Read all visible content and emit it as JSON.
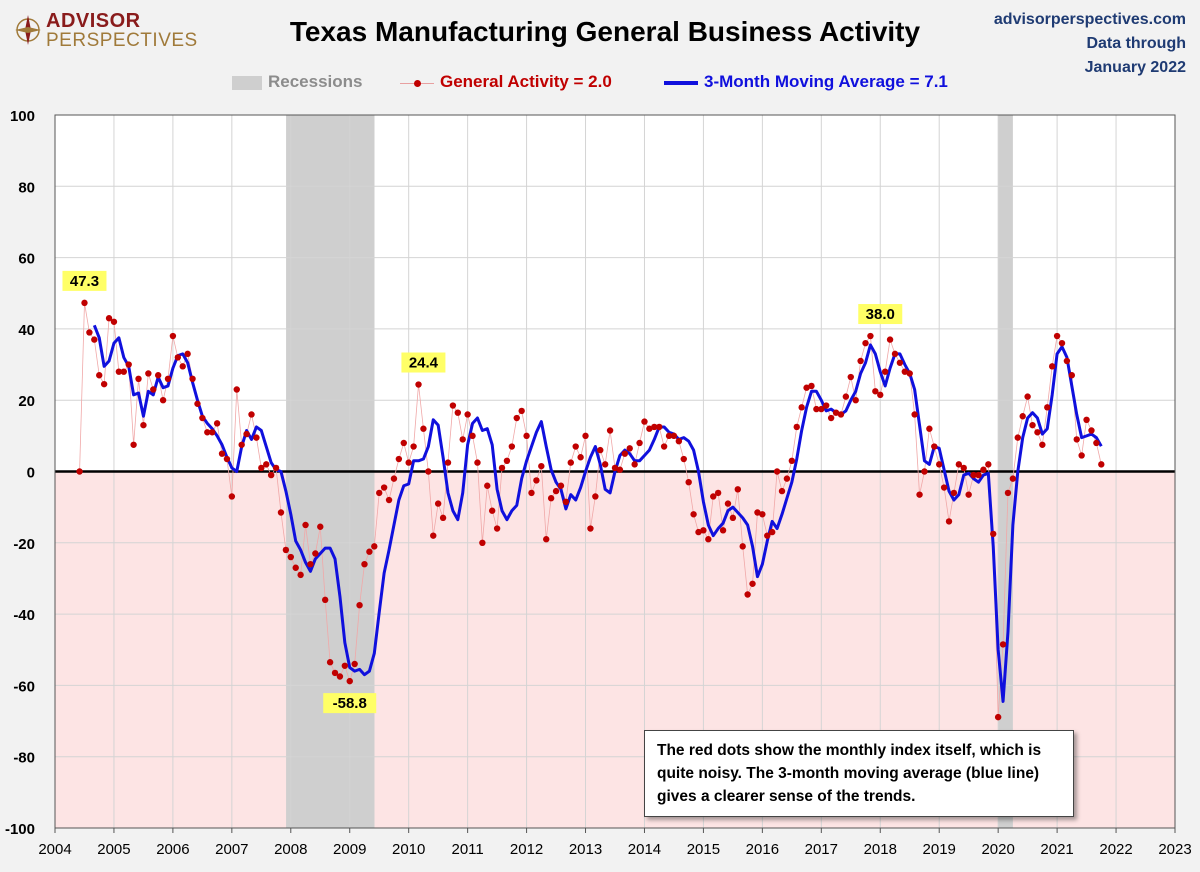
{
  "header": {
    "logo_line1": "ADVISOR",
    "logo_line2": "PERSPECTIVES",
    "title": "Texas Manufacturing General Business Activity",
    "source_line1": "advisorperspectives.com",
    "source_line2": "Data through",
    "source_line3": "January 2022"
  },
  "legend": {
    "recessions": "Recessions",
    "activity": "General Activity = 2.0",
    "moving_average": "3-Month Moving Average = 7.1"
  },
  "note": "The red dots show the monthly  index itself, which is quite noisy. The 3-month moving average (blue line) gives a clearer sense of the trends.",
  "colors": {
    "dots": "#c00000",
    "moving_average": "#1010dd",
    "recession": "#cfcfcf",
    "negative_region": "#fde4e4",
    "positive_region": "#ffffff",
    "callout": "#ffff66"
  },
  "chart_data": {
    "type": "line",
    "title": "Texas Manufacturing General Business Activity",
    "xlabel": "",
    "ylabel": "",
    "xlim": [
      2004,
      2023
    ],
    "ylim": [
      -100,
      100
    ],
    "x_ticks": [
      "2004",
      "2005",
      "2006",
      "2007",
      "2008",
      "2009",
      "2010",
      "2011",
      "2012",
      "2013",
      "2014",
      "2015",
      "2016",
      "2017",
      "2018",
      "2019",
      "2020",
      "2021",
      "2022",
      "2023"
    ],
    "y_ticks": [
      "100",
      "80",
      "60",
      "40",
      "20",
      "0",
      "-20",
      "-40",
      "-60",
      "-80",
      "-100"
    ],
    "recessions": [
      [
        2007.92,
        2009.42
      ],
      [
        2020.0,
        2020.25
      ]
    ],
    "start": 2004.417,
    "step": 0.08333,
    "series": [
      {
        "name": "General Activity",
        "values": [
          0,
          47.3,
          39,
          37,
          27,
          24.5,
          43,
          42,
          28,
          28,
          30,
          7.5,
          26,
          13,
          27.5,
          23,
          27,
          20,
          26,
          38,
          32,
          29.5,
          33,
          26,
          19,
          15,
          11,
          11,
          13.5,
          5,
          3.5,
          -7,
          23,
          7.5,
          10.5,
          16,
          9.5,
          1,
          2,
          -1,
          1,
          -11.5,
          -22,
          -24,
          -27,
          -29,
          -15,
          -26,
          -23,
          -15.5,
          -36,
          -53.5,
          -56.5,
          -57.5,
          -54.5,
          -58.8,
          -54,
          -37.5,
          -26,
          -22.5,
          -21,
          -6,
          -4.5,
          -8,
          -2,
          3.5,
          8,
          2.5,
          7,
          24.4,
          12,
          0,
          -18,
          -9,
          -13,
          2.5,
          18.5,
          16.5,
          9,
          16,
          10,
          2.5,
          -20,
          -4,
          -11,
          -16,
          1,
          3,
          7,
          15,
          17,
          10,
          -6,
          -2.5,
          1.5,
          -19,
          -7.5,
          -5.5,
          -4,
          -8.5,
          2.5,
          7,
          4,
          10,
          -16,
          -7,
          6,
          2,
          11.5,
          1,
          0.5,
          5,
          6.5,
          2,
          8,
          14,
          12,
          12.5,
          12.5,
          7,
          10,
          10,
          8.5,
          3.5,
          -3,
          -12,
          -17,
          -16.5,
          -19,
          -7,
          -6,
          -16.5,
          -9,
          -13,
          -5,
          -21,
          -34.5,
          -31.5,
          -11.5,
          -12,
          -18,
          -17,
          0,
          -5.5,
          -2,
          3,
          12.5,
          18,
          23.5,
          24,
          17.5,
          17.5,
          18.5,
          15,
          16.5,
          16,
          21,
          26.5,
          20,
          31,
          36,
          38.0,
          22.5,
          21.5,
          28,
          37,
          33,
          30.5,
          28,
          27.5,
          16,
          -6.5,
          0,
          12,
          7,
          2,
          -4.5,
          -14,
          -6,
          2,
          1,
          -6.5,
          -1,
          -1,
          0.5,
          2,
          -17.5,
          -68.9,
          -48.5,
          -6,
          -2,
          9.5,
          15.5,
          21,
          13,
          11,
          7.5,
          18,
          29.5,
          38,
          36,
          31,
          27,
          9,
          4.5,
          14.5,
          11.5,
          8,
          2.0
        ]
      },
      {
        "name": "3-Month Moving Average",
        "values": [
          41,
          37.5,
          29.5,
          31,
          36,
          37.5,
          32,
          29.5,
          21.5,
          22,
          15.5,
          22.5,
          21.5,
          26.5,
          23.5,
          24,
          29,
          32.5,
          33,
          30.5,
          25,
          20,
          15.5,
          13.5,
          12,
          10,
          7.5,
          4,
          1,
          0,
          7,
          11.5,
          9,
          12.5,
          11.5,
          7,
          2.5,
          0.5,
          0,
          -5.5,
          -12,
          -19.5,
          -22,
          -25.5,
          -28,
          -24.5,
          -23,
          -21.5,
          -21.5,
          -24.5,
          -35,
          -48,
          -55,
          -56,
          -55.5,
          -57,
          -56,
          -51,
          -39.5,
          -28.5,
          -22,
          -15,
          -8,
          -4,
          -3.5,
          3,
          3,
          3.5,
          7,
          14.5,
          13,
          4,
          -6,
          -11,
          -13.5,
          -6,
          7.5,
          13.5,
          15,
          11.5,
          12,
          7.5,
          -5,
          -11,
          -13.5,
          -11,
          -9.5,
          -2,
          3,
          7,
          11,
          14,
          7,
          0.5,
          -3,
          -5,
          -10.5,
          -6.5,
          -8,
          -4.5,
          0,
          4,
          7,
          2,
          -5,
          -6,
          0,
          4.5,
          6,
          5,
          3,
          3,
          4.5,
          6,
          9,
          12.5,
          12.5,
          11,
          10.5,
          9,
          9.5,
          8.5,
          6,
          0,
          -8.5,
          -15,
          -18,
          -16,
          -14.5,
          -11,
          -10,
          -11.5,
          -13,
          -15,
          -21,
          -29.5,
          -26,
          -19.5,
          -14,
          -16,
          -12,
          -7.5,
          -3,
          3.5,
          11.5,
          18,
          22.5,
          22.5,
          20,
          17,
          17.5,
          16.5,
          16,
          17,
          20,
          22.5,
          27.5,
          30.5,
          35.5,
          33,
          28,
          24,
          29,
          33,
          33,
          30,
          27.5,
          23,
          13,
          3,
          2,
          7,
          6.5,
          0.5,
          -5.5,
          -8,
          -6.5,
          -1,
          -0.5,
          -2,
          -3,
          -1,
          -0.5,
          -21,
          -50,
          -64.5,
          -45,
          -15,
          0,
          9.5,
          15,
          16.5,
          15,
          10.5,
          12,
          21.5,
          33,
          35,
          32,
          24,
          16,
          9.5,
          10,
          10.5,
          9.5,
          7.1
        ]
      }
    ],
    "callouts": [
      {
        "label": "47.3",
        "x": 2004.5,
        "y": 47.3
      },
      {
        "label": "-58.8",
        "x": 2009.0,
        "y": -58.8
      },
      {
        "label": "24.4",
        "x": 2010.25,
        "y": 24.4
      },
      {
        "label": "38.0",
        "x": 2018.0,
        "y": 38.0
      }
    ]
  }
}
